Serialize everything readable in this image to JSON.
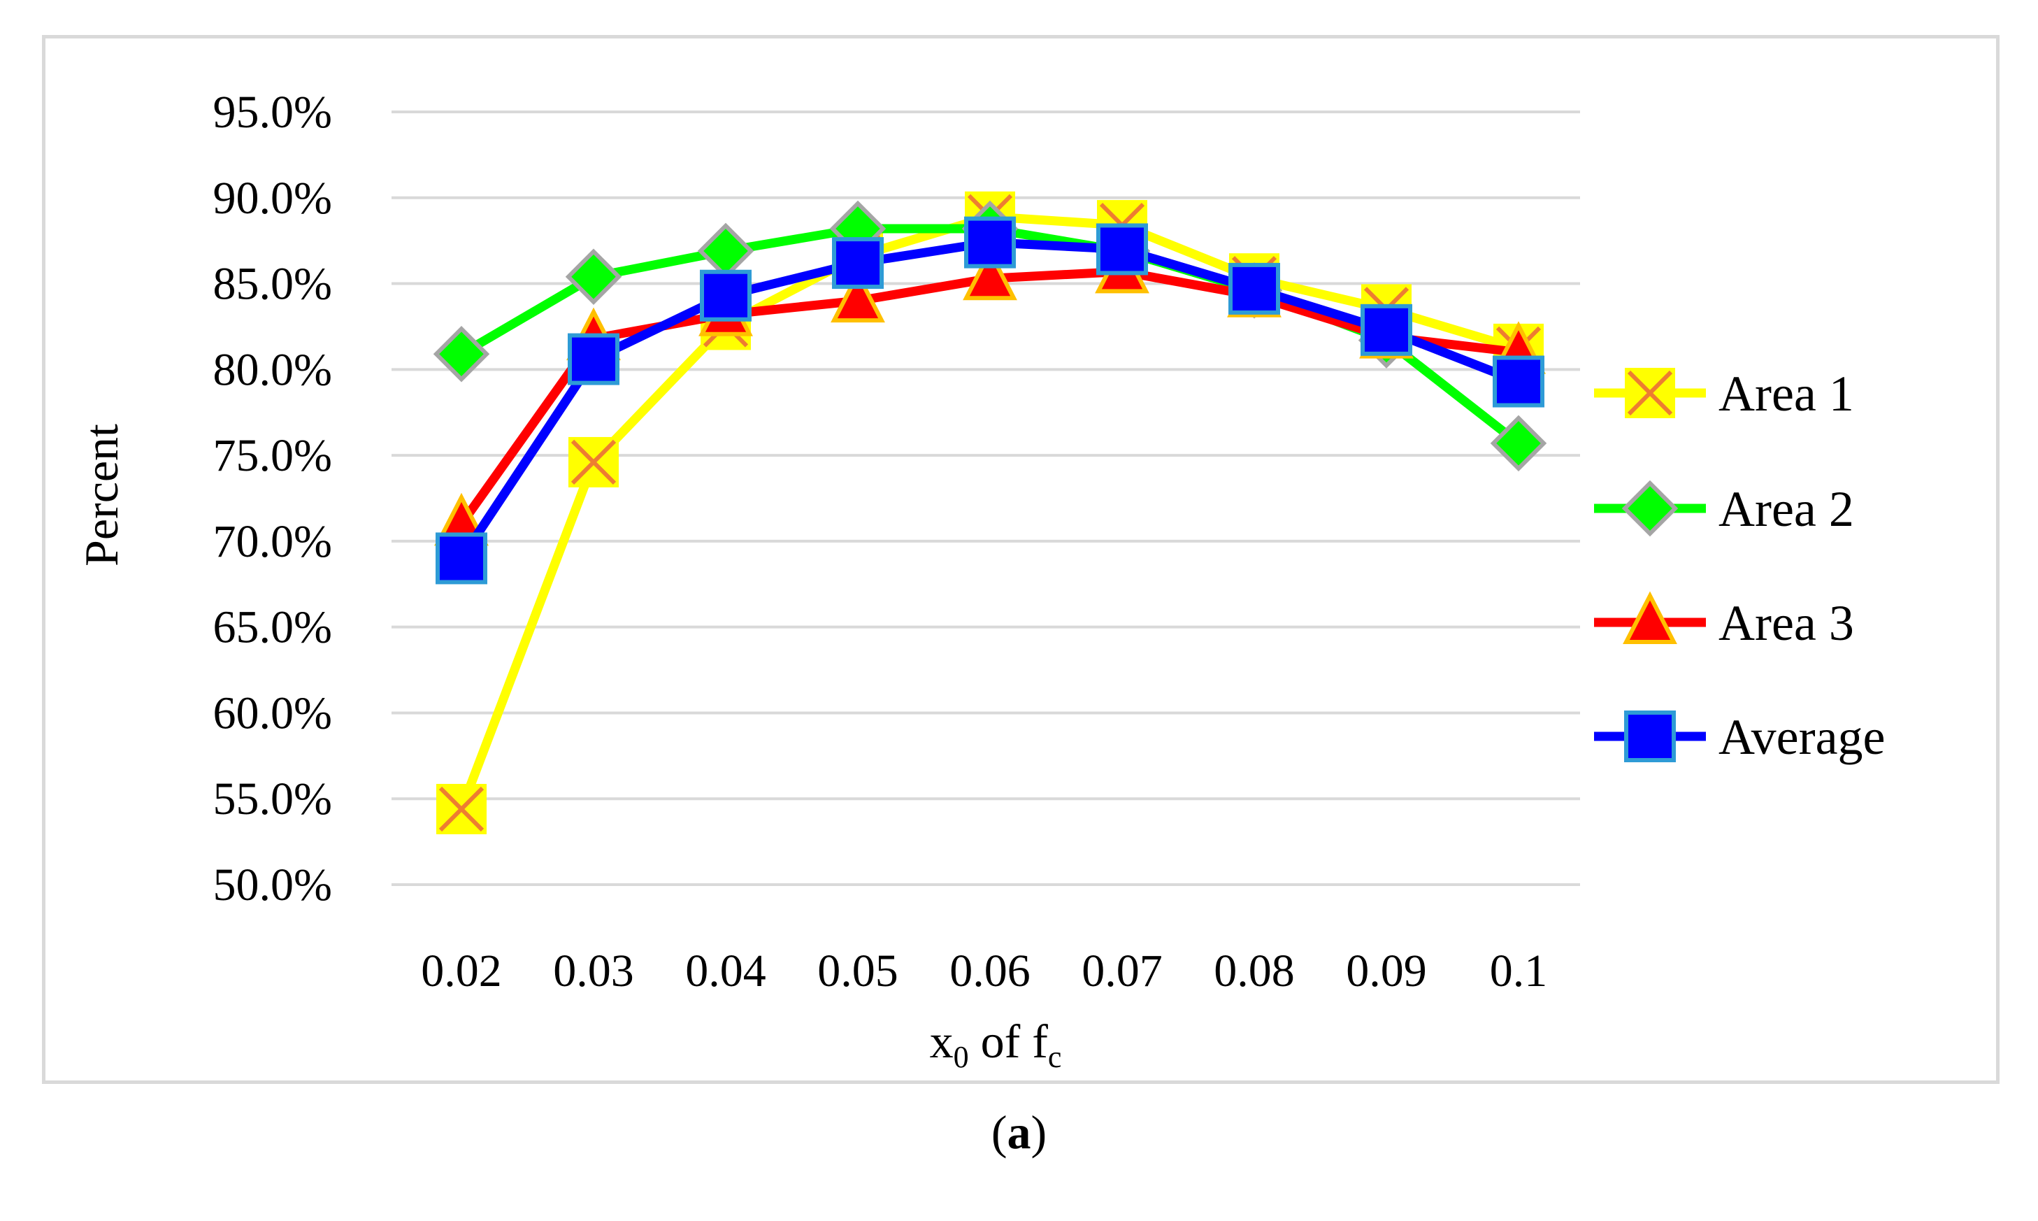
{
  "chart_data": {
    "type": "line",
    "title": "",
    "xlabel": {
      "main": "x",
      "sub": "0",
      "middle": " of f",
      "sub2": "c"
    },
    "ylabel": "Percent",
    "x": [
      "0.02",
      "0.03",
      "0.04",
      "0.05",
      "0.06",
      "0.07",
      "0.08",
      "0.09",
      "0.1"
    ],
    "ylim": [
      0.5,
      0.95
    ],
    "yticks": [
      "50.0%",
      "55.0%",
      "60.0%",
      "65.0%",
      "70.0%",
      "75.0%",
      "80.0%",
      "85.0%",
      "90.0%",
      "95.0%"
    ],
    "grid": true,
    "legend": "right",
    "series": [
      {
        "name": "Area 1",
        "marker": "x-square",
        "color": "#ffff00",
        "markerStroke": "#ed7d31",
        "values": [
          0.544,
          0.746,
          0.826,
          0.866,
          0.889,
          0.884,
          0.853,
          0.835,
          0.812
        ]
      },
      {
        "name": "Area 2",
        "marker": "diamond",
        "color": "#00ff00",
        "markerStroke": "#a5a5a5",
        "values": [
          0.809,
          0.854,
          0.869,
          0.882,
          0.882,
          0.869,
          0.846,
          0.817,
          0.757
        ]
      },
      {
        "name": "Area 3",
        "marker": "triangle",
        "color": "#ff0000",
        "markerStroke": "#ffc000",
        "values": [
          0.71,
          0.818,
          0.832,
          0.84,
          0.853,
          0.857,
          0.843,
          0.819,
          0.81
        ]
      },
      {
        "name": "Average",
        "marker": "square",
        "color": "#0000ff",
        "markerStroke": "#2e9bd6",
        "values": [
          0.69,
          0.806,
          0.843,
          0.862,
          0.874,
          0.87,
          0.847,
          0.823,
          0.793
        ]
      }
    ]
  },
  "panel_label": {
    "open": "(",
    "letter": "a",
    "close": ")"
  }
}
